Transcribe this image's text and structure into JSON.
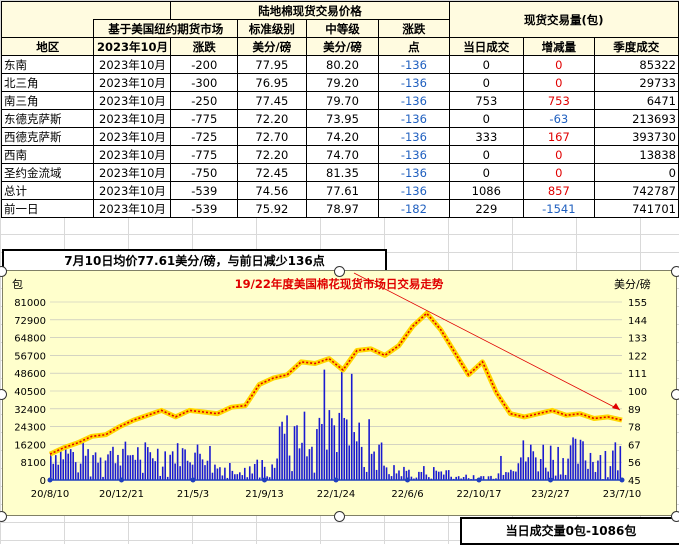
{
  "table": {
    "title": "陆地棉现货交易价格",
    "right_title": "现货交易量(包)",
    "sub_header": "基于美国纽约期货市场",
    "col_std": "标准级别",
    "col_mid": "中等级",
    "col_change": "涨跌",
    "headers": [
      "地区",
      "2023年10月",
      "涨跌",
      "美分/磅",
      "美分/磅",
      "点",
      "当日成交",
      "增减量",
      "季度成交"
    ],
    "rows": [
      {
        "region": "东南",
        "month": "2023年10月",
        "chg": "-200",
        "std": "77.95",
        "mid": "80.20",
        "pt": "-136",
        "vol": "0",
        "delta": "0",
        "season": "85322"
      },
      {
        "region": "北三角",
        "month": "2023年10月",
        "chg": "-300",
        "std": "76.95",
        "mid": "79.20",
        "pt": "-136",
        "vol": "0",
        "delta": "0",
        "season": "29733"
      },
      {
        "region": "南三角",
        "month": "2023年10月",
        "chg": "-250",
        "std": "77.45",
        "mid": "79.70",
        "pt": "-136",
        "vol": "753",
        "delta": "753",
        "season": "6471"
      },
      {
        "region": "东德克萨斯",
        "month": "2023年10月",
        "chg": "-775",
        "std": "72.20",
        "mid": "73.95",
        "pt": "-136",
        "vol": "0",
        "delta": "-63",
        "season": "213693"
      },
      {
        "region": "西德克萨斯",
        "month": "2023年10月",
        "chg": "-725",
        "std": "72.70",
        "mid": "74.20",
        "pt": "-136",
        "vol": "333",
        "delta": "167",
        "season": "393730"
      },
      {
        "region": "西南",
        "month": "2023年10月",
        "chg": "-775",
        "std": "72.20",
        "mid": "74.70",
        "pt": "-136",
        "vol": "0",
        "delta": "0",
        "season": "13838"
      },
      {
        "region": "圣约金流域",
        "month": "2023年10月",
        "chg": "-750",
        "std": "72.45",
        "mid": "81.35",
        "pt": "-136",
        "vol": "0",
        "delta": "0",
        "season": "0"
      },
      {
        "region": "总计",
        "month": "2023年10月",
        "chg": "-539",
        "std": "74.56",
        "mid": "77.61",
        "pt": "-136",
        "vol": "1086",
        "delta": "857",
        "season": "742787"
      },
      {
        "region": "前一日",
        "month": "2023年10月",
        "chg": "-539",
        "std": "75.92",
        "mid": "78.97",
        "pt": "-182",
        "vol": "229",
        "delta": "-1541",
        "season": "741701"
      }
    ]
  },
  "avg_note": "7月10日均价77.61美分/磅，与前日减少136点",
  "volume_note": "当日成交量0包-1086包",
  "chart_data": {
    "type": "bar",
    "title": "19/22年度美国棉花现货市场日交易走势",
    "left_unit": "包",
    "right_unit": "美分/磅",
    "left_ticks": [
      "81000",
      "72900",
      "64800",
      "56700",
      "48600",
      "40500",
      "32400",
      "24300",
      "16200",
      "8100",
      "0"
    ],
    "right_ticks": [
      "155",
      "144",
      "133",
      "122",
      "111",
      "100",
      "89",
      "78",
      "67",
      "56",
      "45"
    ],
    "x_ticks": [
      "20/8/10",
      "20/12/21",
      "21/5/3",
      "21/9/13",
      "22/1/24",
      "22/6/6",
      "22/10/17",
      "23/2/27",
      "23/7/10"
    ],
    "ylim_left": [
      0,
      81000
    ],
    "ylim_right": [
      45,
      155
    ],
    "price_series": {
      "name": "price",
      "points": [
        [
          0,
          61
        ],
        [
          1,
          65
        ],
        [
          2,
          68
        ],
        [
          3,
          72
        ],
        [
          4,
          73
        ],
        [
          5,
          78
        ],
        [
          6,
          82
        ],
        [
          7,
          85
        ],
        [
          8,
          88
        ],
        [
          9,
          84
        ],
        [
          10,
          88
        ],
        [
          11,
          87
        ],
        [
          12,
          86
        ],
        [
          13,
          90
        ],
        [
          14,
          91
        ],
        [
          15,
          104
        ],
        [
          16,
          108
        ],
        [
          17,
          110
        ],
        [
          18,
          118
        ],
        [
          19,
          117
        ],
        [
          20,
          120
        ],
        [
          21,
          113
        ],
        [
          22,
          125
        ],
        [
          23,
          126
        ],
        [
          24,
          122
        ],
        [
          25,
          128
        ],
        [
          26,
          140
        ],
        [
          27,
          148
        ],
        [
          28,
          138
        ],
        [
          29,
          124
        ],
        [
          30,
          110
        ],
        [
          31,
          118
        ],
        [
          32,
          99
        ],
        [
          33,
          86
        ],
        [
          34,
          84
        ],
        [
          35,
          86
        ],
        [
          36,
          88
        ],
        [
          37,
          85
        ],
        [
          38,
          86
        ],
        [
          39,
          83
        ],
        [
          40,
          84
        ],
        [
          41,
          82
        ]
      ]
    },
    "volume_note": "daily volume bars"
  }
}
